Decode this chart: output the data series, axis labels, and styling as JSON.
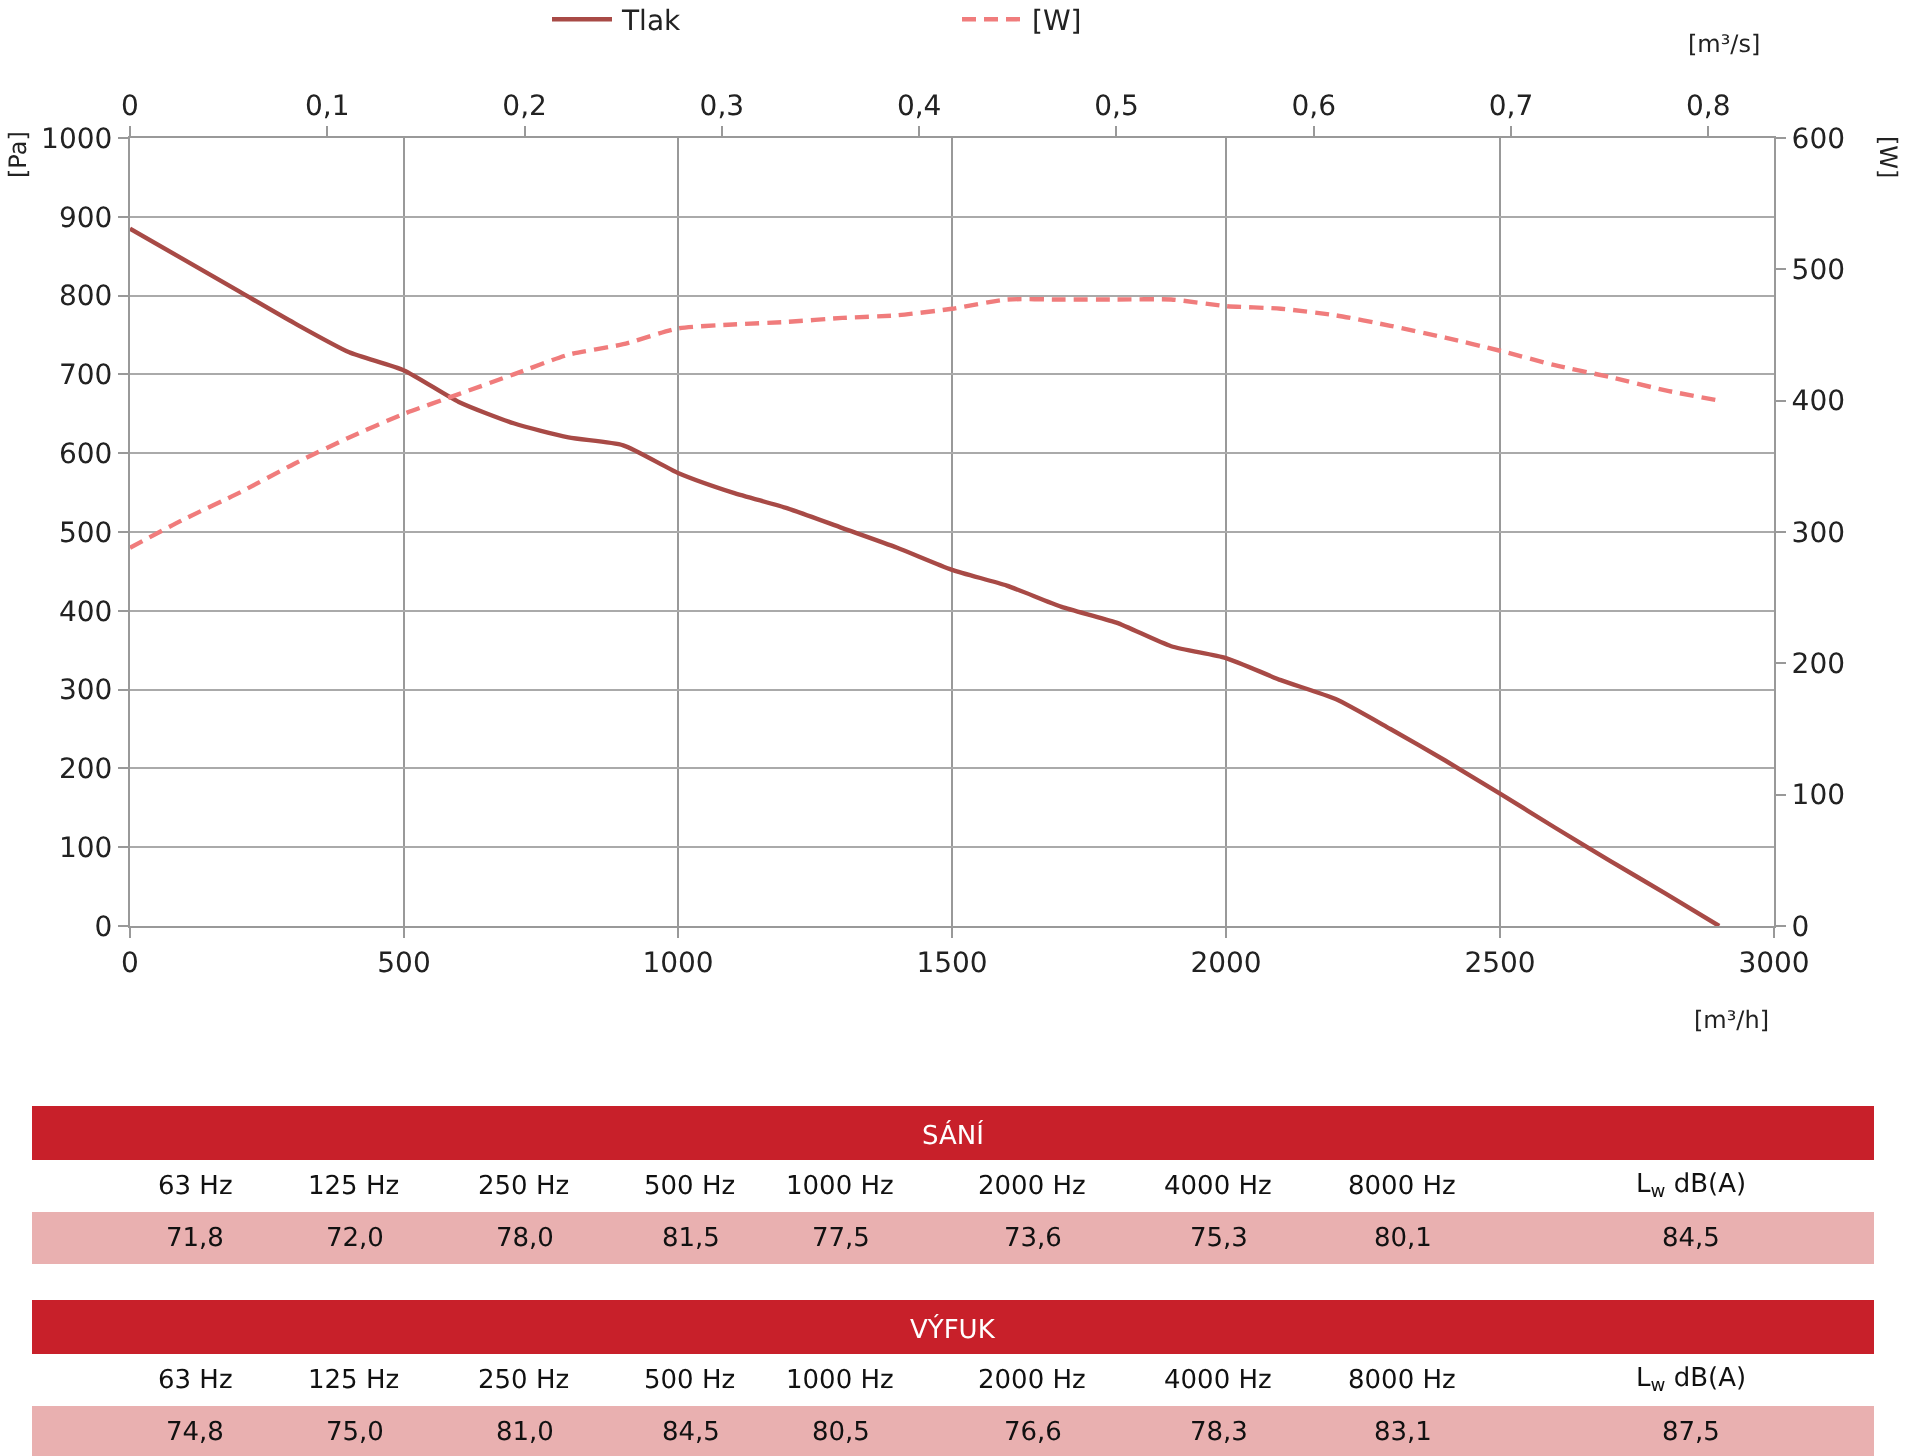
{
  "chart_data": [
    {
      "type": "line",
      "x": [
        0,
        100,
        200,
        300,
        400,
        500,
        600,
        700,
        800,
        900,
        1000,
        1100,
        1200,
        1300,
        1400,
        1500,
        1600,
        1700,
        1800,
        1900,
        2000,
        2100,
        2200,
        2300,
        2400,
        2500,
        2600,
        2700,
        2800,
        2900
      ],
      "series": [
        {
          "name": "Tlak",
          "color": "#a84a46",
          "line_style": "solid",
          "values": [
            885,
            845,
            805,
            765,
            728,
            705,
            665,
            638,
            620,
            610,
            575,
            550,
            530,
            505,
            480,
            452,
            432,
            405,
            385,
            355,
            340,
            312,
            288,
            250,
            210,
            168,
            125,
            83,
            42,
            0
          ]
        },
        {
          "name": "[W]",
          "color": "#f07c7c",
          "line_style": "dashed",
          "axis": "y2",
          "values": [
            288,
            310,
            330,
            352,
            372,
            390,
            405,
            420,
            435,
            443,
            455,
            458,
            460,
            463,
            465,
            470,
            477,
            477,
            477,
            477,
            472,
            470,
            465,
            457,
            448,
            438,
            427,
            418,
            408,
            400
          ]
        }
      ],
      "xlabel": "[m³/h]",
      "x2label": "[m³/s]",
      "ylabel": "[Pa]",
      "y2label": "[W]",
      "xlim": [
        0,
        3000
      ],
      "xticks": [
        0,
        500,
        1000,
        1500,
        2000,
        2500,
        3000
      ],
      "x2lim": [
        0,
        0.8333
      ],
      "x2ticks": [
        0,
        {
          "value": 0.1,
          "label": "0,1"
        },
        {
          "value": 0.2,
          "label": "0,2"
        },
        {
          "value": 0.3,
          "label": "0,3"
        },
        {
          "value": 0.4,
          "label": "0,4"
        },
        {
          "value": 0.5,
          "label": "0,5"
        },
        {
          "value": 0.6,
          "label": "0,6"
        },
        {
          "value": 0.7,
          "label": "0,7"
        },
        {
          "value": 0.8,
          "label": "0,8"
        }
      ],
      "ylim": [
        0,
        1000
      ],
      "yticks": [
        0,
        100,
        200,
        300,
        400,
        500,
        600,
        700,
        800,
        900,
        1000
      ],
      "y2lim": [
        0,
        600
      ],
      "y2ticks": [
        0,
        100,
        200,
        300,
        400,
        500,
        600
      ],
      "grid": true,
      "legend": "top",
      "marker": "none"
    },
    {
      "type": "other",
      "title": "SÁNÍ",
      "color": "#c8202a",
      "categories": [
        "63 Hz",
        "125 Hz",
        "250 Hz",
        "500 Hz",
        "1000 Hz",
        "2000 Hz",
        "4000 Hz",
        "8000 Hz",
        "L$_{w}$ dB(A)"
      ],
      "series": [
        {
          "color": "#e9b0b0",
          "values": [
            71.8,
            72.0,
            78.0,
            81.5,
            77.5,
            73.6,
            75.3,
            80.1,
            84.5
          ],
          "value_labels": [
            "71,8",
            "72,0",
            "78,0",
            "81,5",
            "77,5",
            "73,6",
            "75,3",
            "80,1",
            "84,5"
          ]
        }
      ]
    },
    {
      "type": "other",
      "title": "VÝFUK",
      "color": "#c8202a",
      "categories": [
        "63 Hz",
        "125 Hz",
        "250 Hz",
        "500 Hz",
        "1000 Hz",
        "2000 Hz",
        "4000 Hz",
        "8000 Hz",
        "L$_{w}$ dB(A)"
      ],
      "series": [
        {
          "color": "#e9b0b0",
          "values": [
            74.8,
            75.0,
            81.0,
            84.5,
            80.5,
            76.6,
            78.3,
            83.1,
            87.5
          ],
          "value_labels": [
            "74,8",
            "75,0",
            "81,0",
            "84,5",
            "80,5",
            "76,6",
            "78,3",
            "83,1",
            "87,5"
          ]
        }
      ]
    }
  ]
}
